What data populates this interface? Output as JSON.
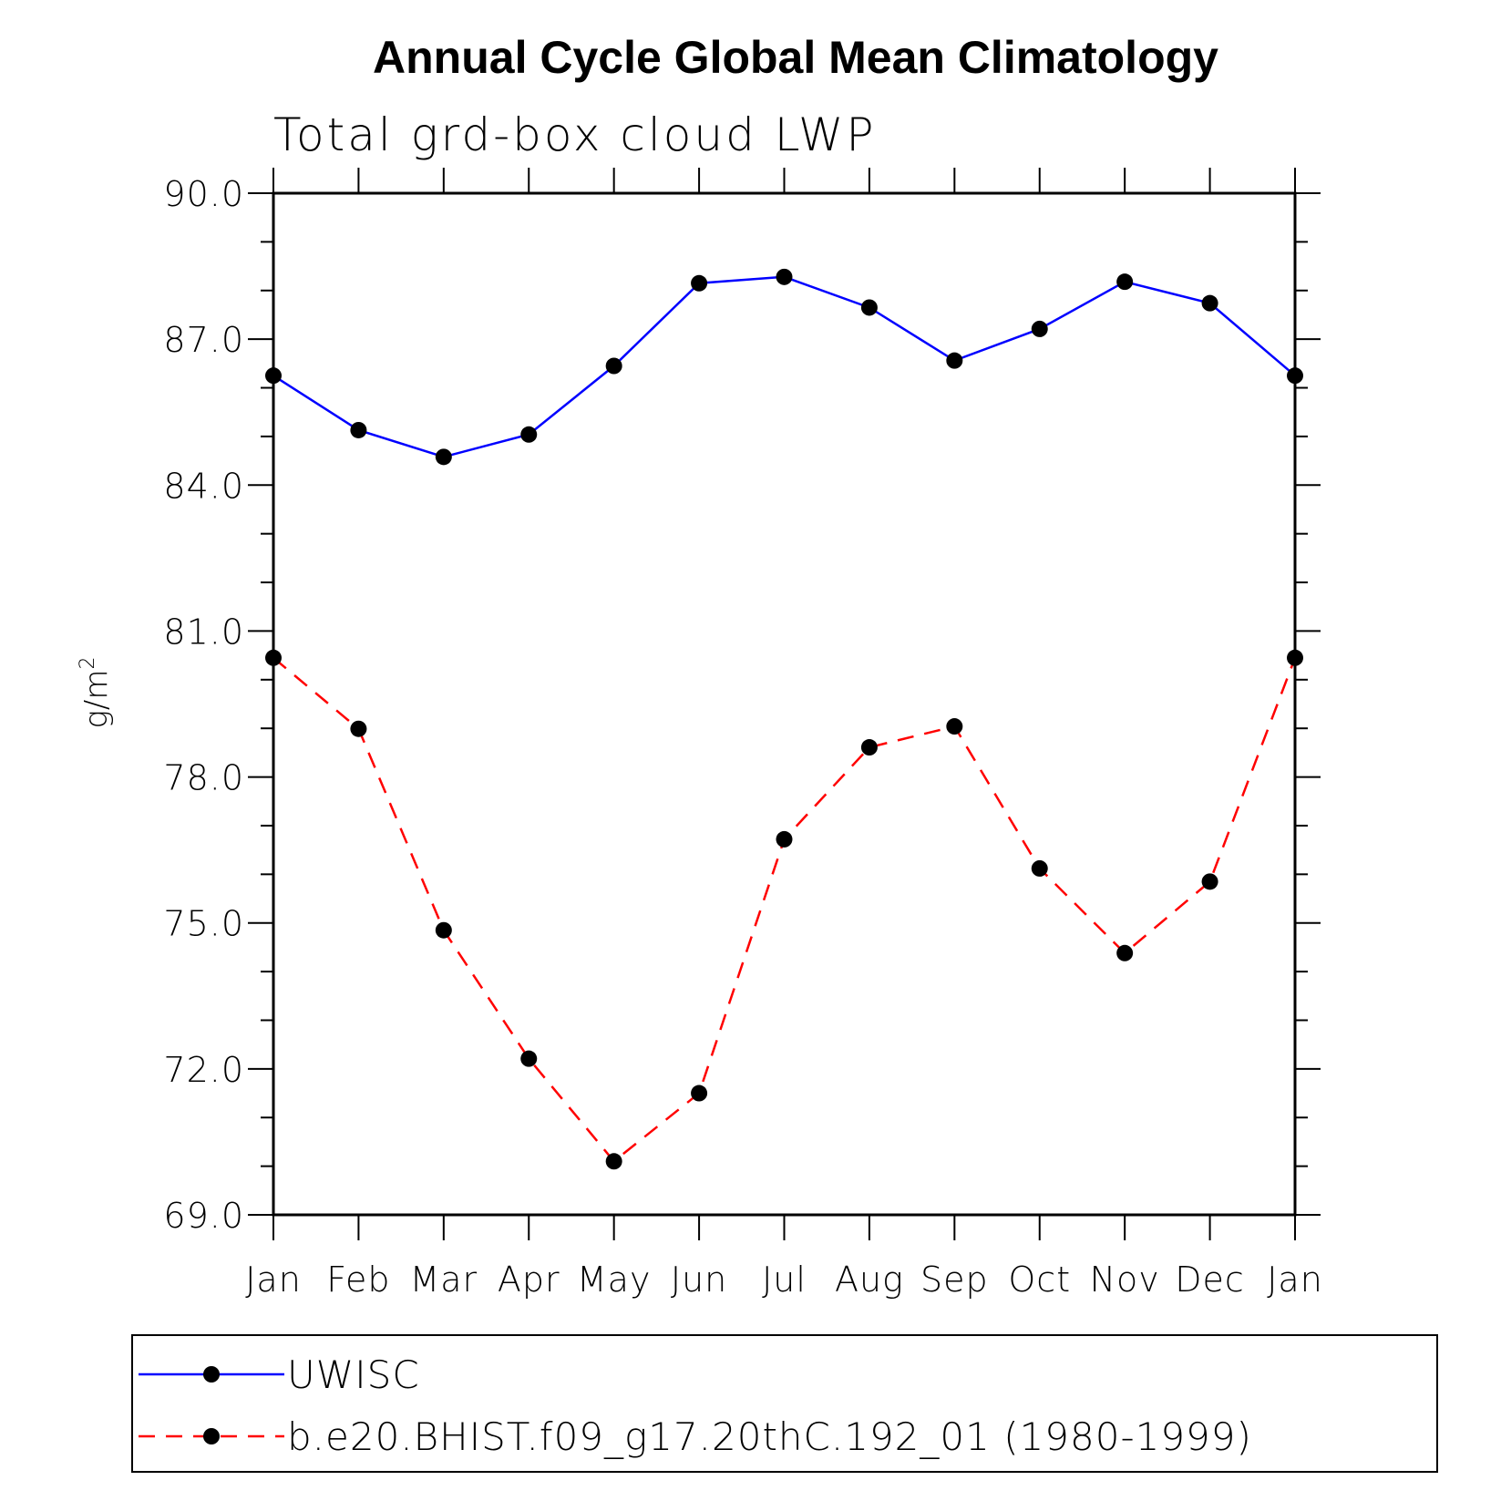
{
  "chart_data": {
    "type": "line",
    "title": "Annual Cycle Global Mean Climatology",
    "subtitle": "Total grd-box cloud LWP",
    "ylabel": "g/m",
    "ylabel_superscript": "2",
    "xlabel": "",
    "categories": [
      "Jan",
      "Feb",
      "Mar",
      "Apr",
      "May",
      "Jun",
      "Jul",
      "Aug",
      "Sep",
      "Oct",
      "Nov",
      "Dec",
      "Jan"
    ],
    "ylim": [
      69.0,
      90.0
    ],
    "yticks": [
      90.0,
      87.0,
      84.0,
      81.0,
      78.0,
      75.0,
      72.0,
      69.0
    ],
    "ytick_labels": [
      "90.0",
      "87.0",
      "84.0",
      "81.0",
      "78.0",
      "75.0",
      "72.0",
      "69.0"
    ],
    "y_minor_step": 1.0,
    "grid": false,
    "legend_position": "bottom",
    "series": [
      {
        "name": "UWISC",
        "color": "#0000ff",
        "line_style": "solid",
        "marker": "filled-circle",
        "values": [
          86.25,
          85.13,
          84.58,
          85.04,
          86.45,
          88.15,
          88.28,
          87.65,
          86.56,
          87.21,
          88.18,
          87.74,
          86.25
        ]
      },
      {
        "name": "b.e20.BHIST.f09_g17.20thC.192_01 (1980-1999)",
        "color": "#ff0000",
        "line_style": "dashed",
        "marker": "filled-circle",
        "values": [
          80.45,
          78.99,
          74.85,
          72.21,
          70.1,
          71.5,
          76.72,
          78.61,
          79.04,
          76.12,
          74.38,
          75.85,
          80.45
        ]
      }
    ]
  }
}
